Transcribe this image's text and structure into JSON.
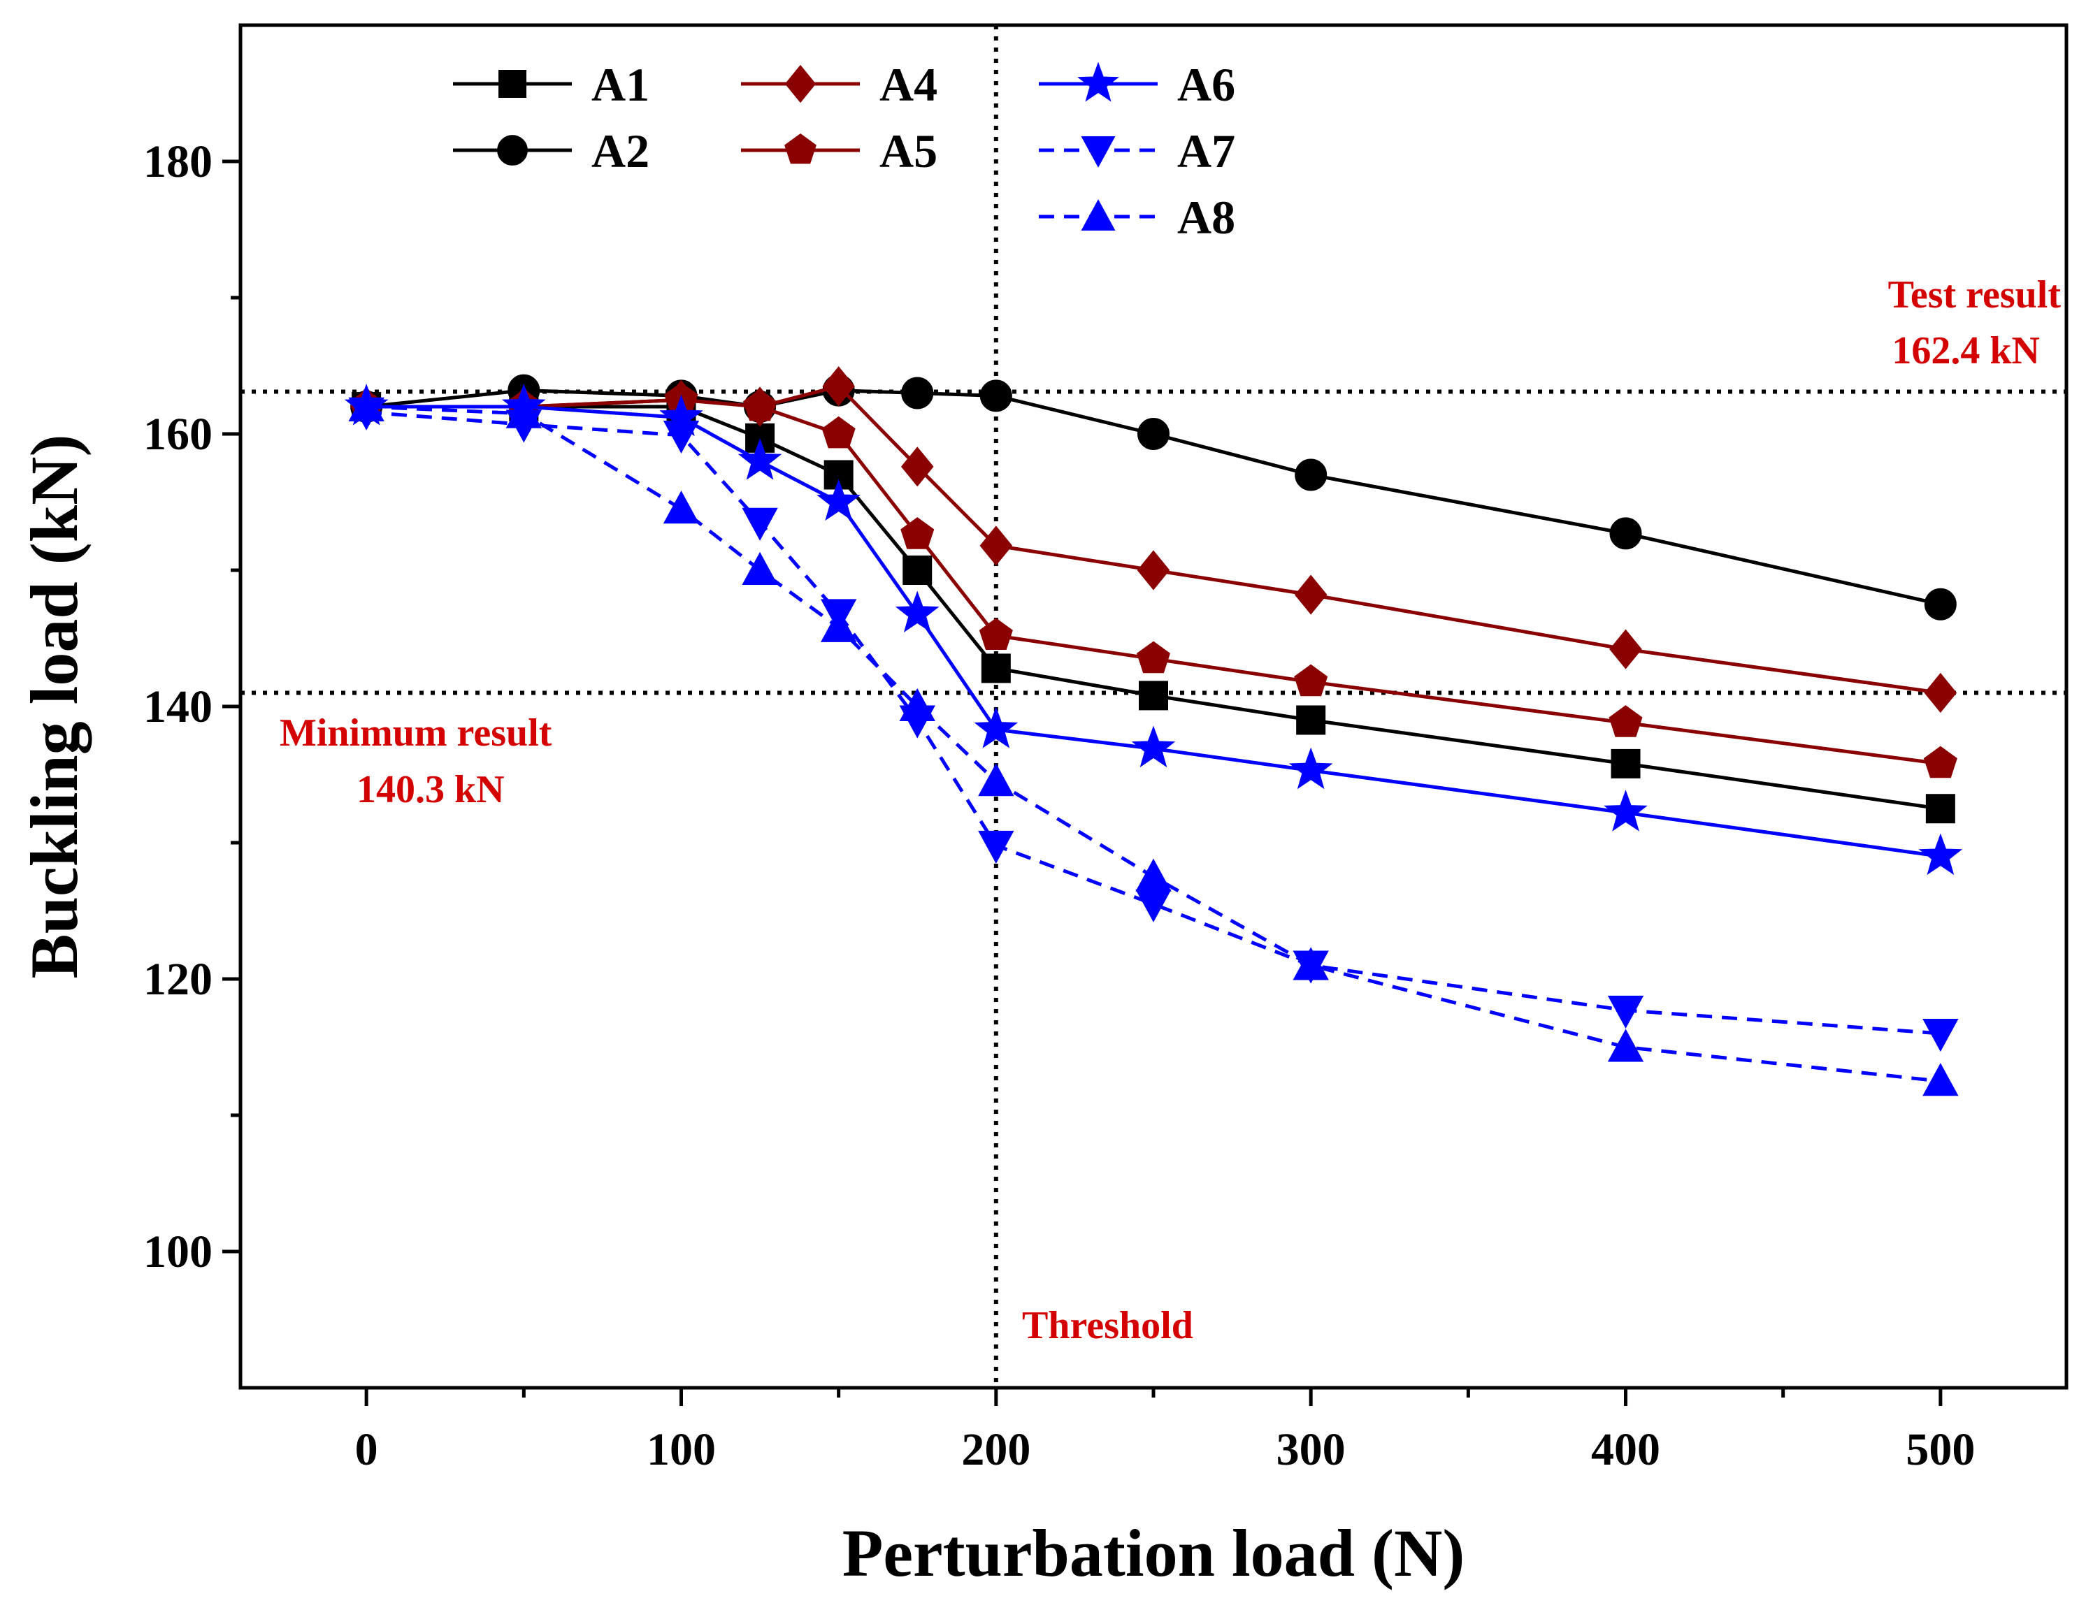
{
  "chart_data": {
    "type": "line",
    "xlabel": "Perturbation load (N)",
    "ylabel": "Buckling load (kN)",
    "xlim": [
      -40,
      540
    ],
    "ylim": [
      90,
      190
    ],
    "xticks": [
      0,
      100,
      200,
      300,
      400,
      500
    ],
    "yticks": [
      100,
      120,
      140,
      160,
      180
    ],
    "grid": false,
    "legend_position": "top-left",
    "x": [
      0,
      50,
      100,
      125,
      150,
      175,
      200,
      250,
      300,
      400,
      500
    ],
    "series": [
      {
        "name": "A1",
        "color": "#000000",
        "marker": "square",
        "dash": false,
        "values": [
          162,
          162,
          162,
          159.7,
          157,
          150,
          142.8,
          140.8,
          139,
          135.8,
          132.5
        ]
      },
      {
        "name": "A2",
        "color": "#000000",
        "marker": "circle",
        "dash": false,
        "values": [
          162,
          163.2,
          162.8,
          162,
          163.2,
          163,
          162.8,
          160,
          157,
          152.7,
          147.5
        ]
      },
      {
        "name": "A4",
        "color": "#8b0000",
        "marker": "diamond",
        "dash": false,
        "values": [
          162,
          162,
          162.5,
          162,
          163.5,
          157.6,
          151.8,
          150,
          148.2,
          144.2,
          141
        ]
      },
      {
        "name": "A5",
        "color": "#8b0000",
        "marker": "pentagon",
        "dash": false,
        "values": [
          162,
          162,
          162.5,
          162,
          160,
          152.6,
          145.2,
          143.5,
          141.8,
          138.8,
          135.8
        ]
      },
      {
        "name": "A6",
        "color": "#0000ff",
        "marker": "star",
        "dash": false,
        "values": [
          162,
          162,
          161.2,
          158,
          155,
          146.8,
          138.3,
          136.9,
          135.3,
          132.2,
          129
        ]
      },
      {
        "name": "A7",
        "color": "#0000ff",
        "marker": "triangle-down",
        "dash": true,
        "values": [
          161.6,
          160.7,
          159.9,
          153.5,
          146.8,
          139,
          129.8,
          125.5,
          121,
          117.7,
          116
        ]
      },
      {
        "name": "A8",
        "color": "#0000ff",
        "marker": "triangle-up",
        "dash": true,
        "values": [
          162,
          161.5,
          154.5,
          150,
          145.8,
          140,
          134.5,
          127.5,
          121,
          115,
          112.5
        ]
      }
    ],
    "reference_lines": [
      {
        "orientation": "horizontal",
        "value": 163.1
      },
      {
        "orientation": "horizontal",
        "value": 141
      },
      {
        "orientation": "vertical",
        "value": 200
      }
    ],
    "annotations": {
      "test_result": {
        "line1": "Test result",
        "line2": "162.4 kN",
        "color": "#d40000"
      },
      "minimum_result": {
        "line1": "Minimum result",
        "line2": "140.3 kN",
        "color": "#d40000"
      },
      "threshold": {
        "text": "Threshold",
        "color": "#d40000"
      }
    }
  }
}
